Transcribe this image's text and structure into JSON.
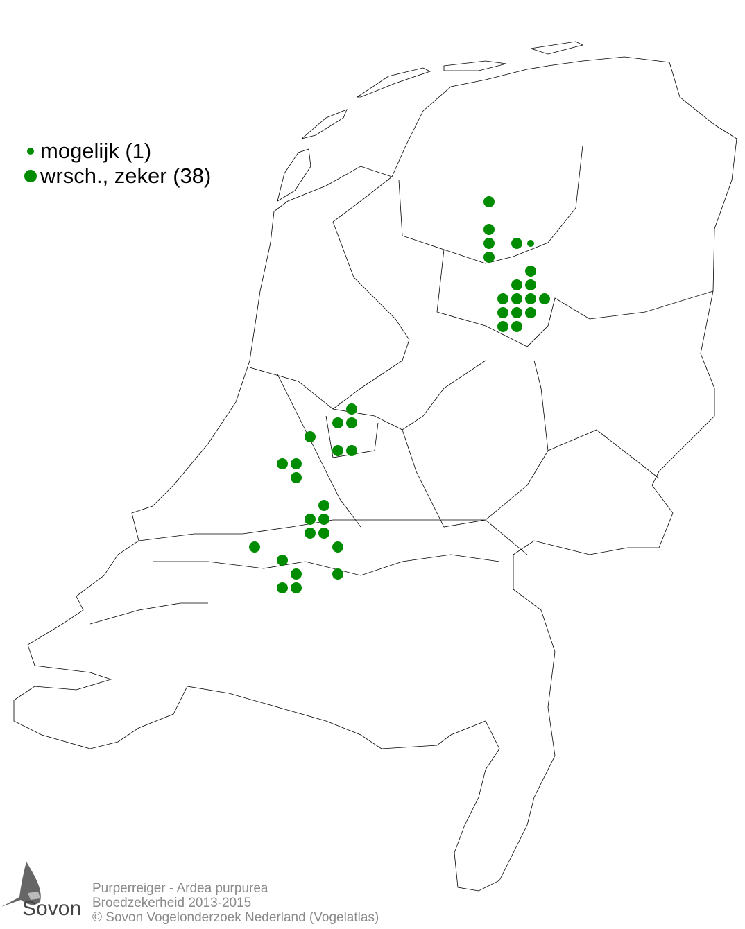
{
  "legend": {
    "items": [
      {
        "label": "mogelijk (1)",
        "category": "mogelijk",
        "count": 1
      },
      {
        "label": "wrsch., zeker (38)",
        "category": "waarschijnlijk-zeker",
        "count": 38
      }
    ]
  },
  "colors": {
    "dot": "#008c00",
    "outline": "#000000",
    "footer_text": "#8a8a8a"
  },
  "footer": {
    "species": "Purperreiger - Ardea purpurea",
    "subtitle": "Broedzekerheid 2013-2015",
    "copyright": "© Sovon Vogelonderzoek Nederland (Vogelatlas)"
  },
  "logo": {
    "text": "Sovon"
  }
}
